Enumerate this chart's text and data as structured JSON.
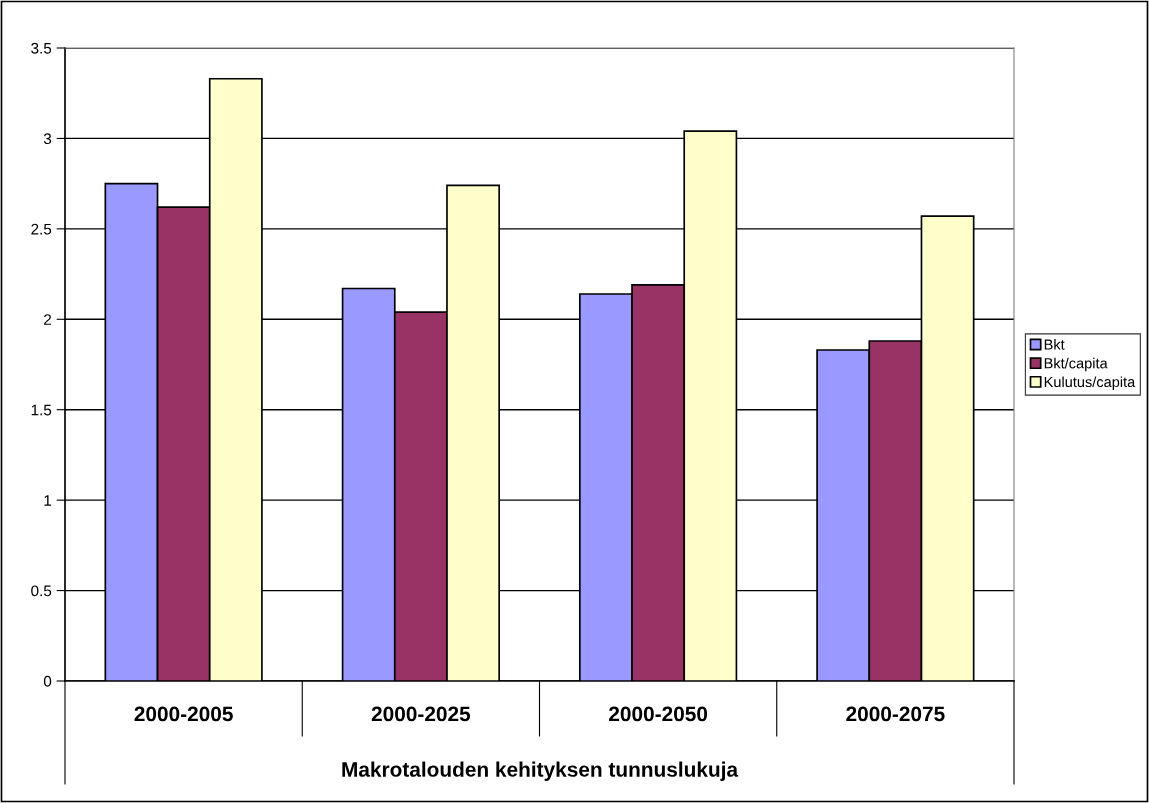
{
  "chart_data": {
    "type": "bar",
    "xlabel": "Makrotalouden kehityksen tunnuslukuja",
    "categories": [
      "2000-2005",
      "2000-2025",
      "2000-2050",
      "2000-2075"
    ],
    "series": [
      {
        "name": "Bkt",
        "color": "#9999ff",
        "values": [
          2.75,
          2.17,
          2.14,
          1.83
        ]
      },
      {
        "name": "Bkt/capita",
        "color": "#993366",
        "values": [
          2.62,
          2.04,
          2.19,
          1.88
        ]
      },
      {
        "name": "Kulutus/capita",
        "color": "#ffffcc",
        "values": [
          3.33,
          2.74,
          3.04,
          2.57
        ]
      }
    ],
    "ylim": [
      0,
      3.5
    ],
    "yticks": [
      0,
      0.5,
      1,
      1.5,
      2,
      2.5,
      3,
      3.5
    ],
    "grid": "y",
    "legend": "right"
  }
}
